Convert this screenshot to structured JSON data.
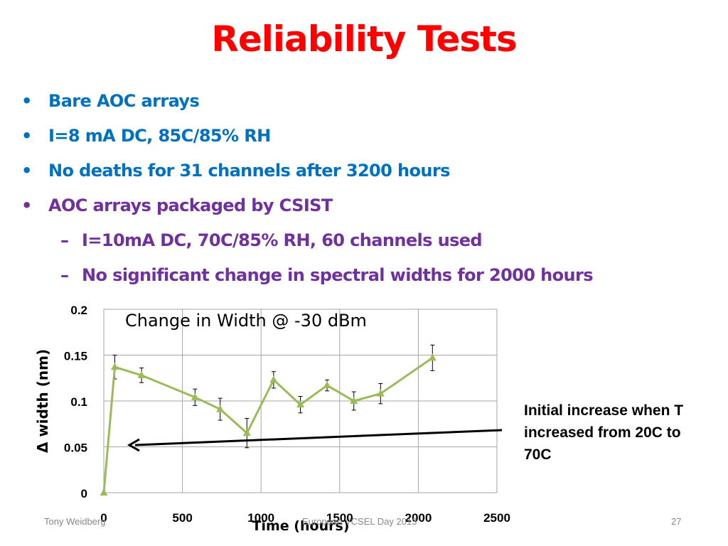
{
  "slide": {
    "title": "Reliability Tests",
    "bullets": [
      {
        "text": "Bare AOC arrays",
        "color": "#0070c0"
      },
      {
        "text": "I=8 mA DC, 85C/85% RH",
        "color": "#0070c0"
      },
      {
        "text": "No deaths for 31 channels after 3200 hours",
        "color": "#0070c0"
      },
      {
        "text": "AOC arrays packaged by CSIST",
        "color": "#7030a0"
      }
    ],
    "sub_bullets": [
      {
        "text": "I=10mA DC, 70C/85% RH, 60 channels used"
      },
      {
        "text": "No significant change in spectral widths for 2000 hours"
      }
    ],
    "bullet_mark": "•",
    "sub_mark": "–",
    "annotation": "Initial increase when T increased from 20C to 70C",
    "footer": {
      "author": "Tony Weidberg",
      "event": "European VCSEL Day 2013",
      "page": "27"
    }
  },
  "chart_data": {
    "type": "line",
    "title": "Change in Width @ -30 dBm",
    "xlabel": "Time (hours)",
    "ylabel": "Δ width (nm)",
    "xlim": [
      0,
      2500
    ],
    "ylim": [
      0,
      0.2
    ],
    "xticks": [
      "0",
      "500",
      "1000",
      "1500",
      "2000",
      "2500"
    ],
    "yticks": [
      "0",
      "0.05",
      "0.1",
      "0.15",
      "0.2"
    ],
    "xtick_values": [
      0,
      500,
      1000,
      1500,
      2000,
      2500
    ],
    "ytick_values": [
      0,
      0.05,
      0.1,
      0.15,
      0.2
    ],
    "grid": true,
    "series": [
      {
        "color": "#9bbb59",
        "marker": "triangle",
        "x": [
          0,
          70,
          240,
          580,
          740,
          910,
          1080,
          1250,
          1420,
          1590,
          1760,
          2090
        ],
        "y": [
          0.0,
          0.137,
          0.128,
          0.104,
          0.091,
          0.065,
          0.123,
          0.096,
          0.117,
          0.1,
          0.108,
          0.147
        ],
        "err": [
          0,
          0.013,
          0.008,
          0.009,
          0.012,
          0.016,
          0.009,
          0.009,
          0.006,
          0.01,
          0.011,
          0.014
        ]
      }
    ],
    "annotation_arrow": {
      "color": "#000000"
    }
  }
}
